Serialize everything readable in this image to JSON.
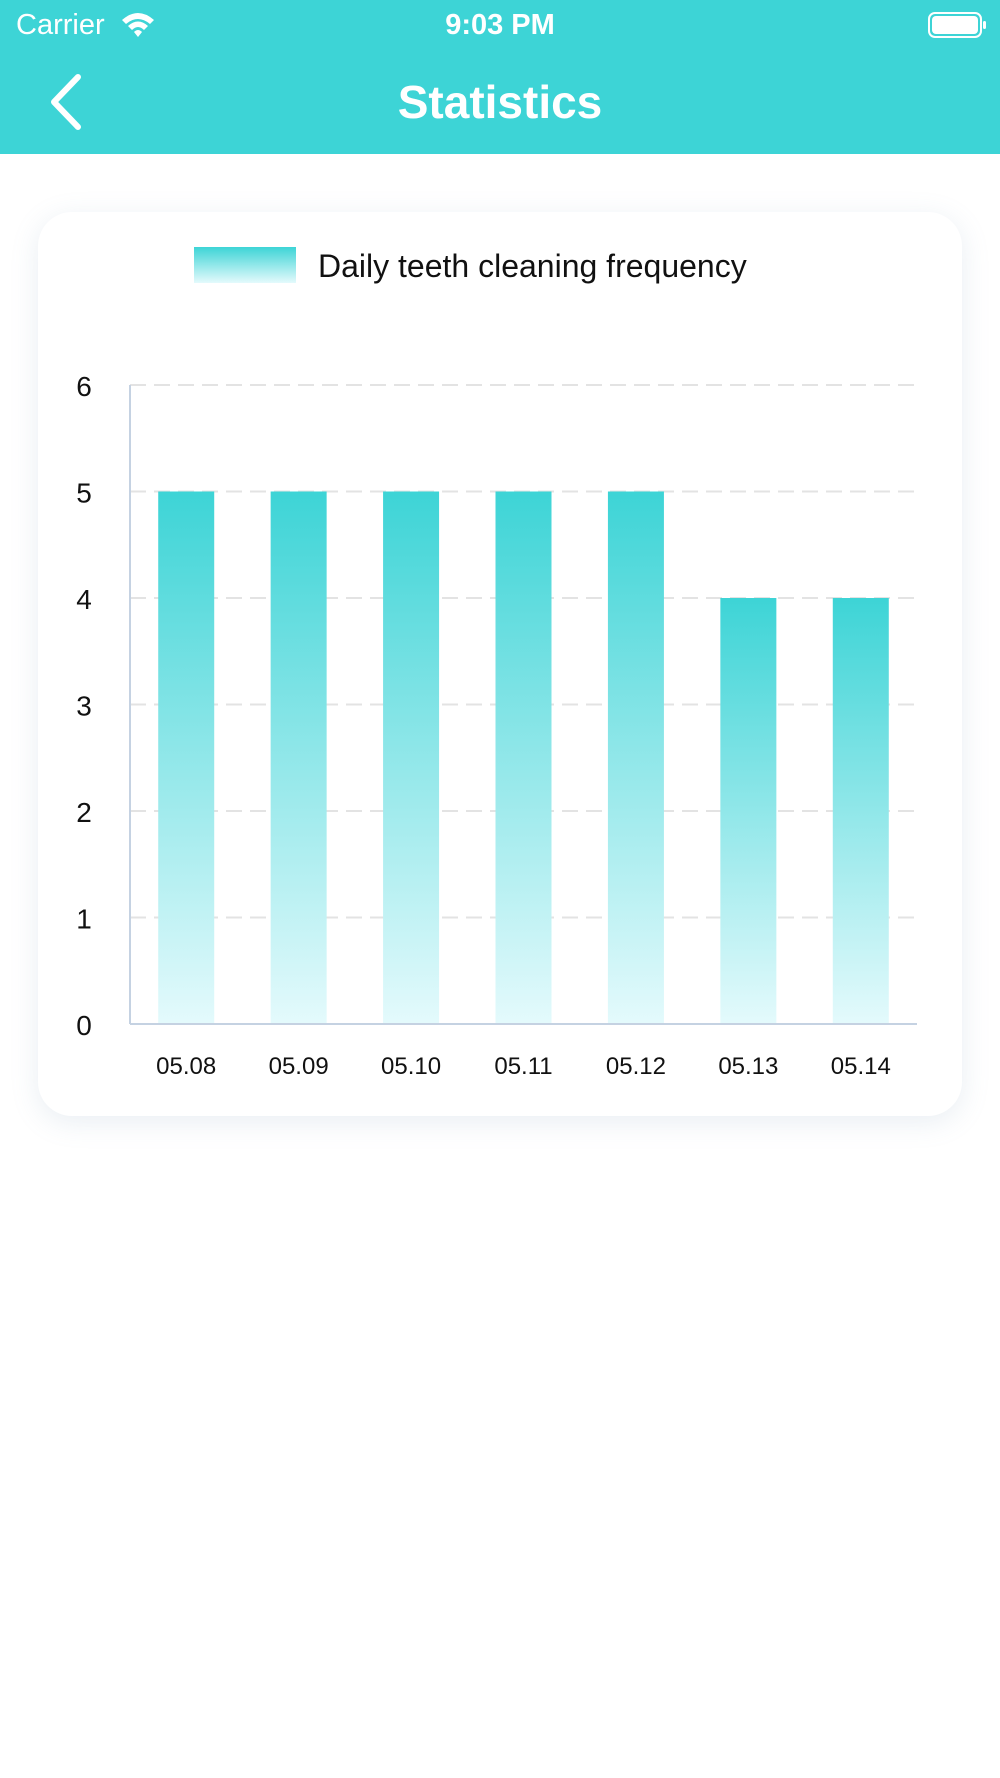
{
  "status_bar": {
    "carrier": "Carrier",
    "time": "9:03 PM"
  },
  "navbar": {
    "title": "Statistics",
    "back_icon": "chevron-left-icon"
  },
  "colors": {
    "header": "#3dd4d6",
    "bar_top": "#3dd4d6",
    "bar_bottom": "#e4fafc",
    "axis": "#c5d2e2",
    "grid": "#e3e3e3"
  },
  "chart_data": {
    "type": "bar",
    "title": "",
    "legend": [
      "Daily teeth cleaning frequency"
    ],
    "legend_position": "top-center",
    "categories": [
      "05.08",
      "05.09",
      "05.10",
      "05.11",
      "05.12",
      "05.13",
      "05.14"
    ],
    "series": [
      {
        "name": "Daily teeth cleaning frequency",
        "values": [
          5,
          5,
          5,
          5,
          5,
          4,
          4
        ]
      }
    ],
    "y_ticks": [
      "0",
      "1",
      "2",
      "3",
      "4",
      "5",
      "6"
    ],
    "ylim": [
      0,
      6
    ],
    "grid": "dashed-horizontal"
  }
}
